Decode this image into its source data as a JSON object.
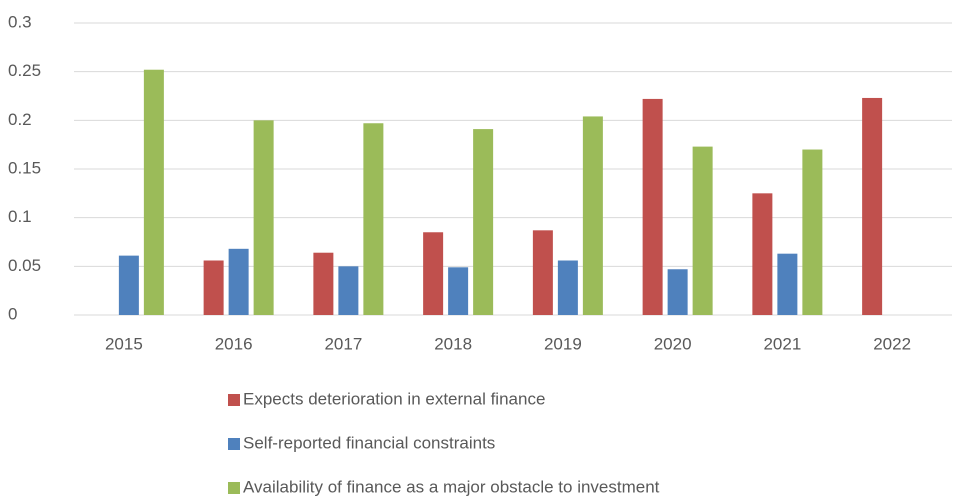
{
  "chart_data": {
    "type": "bar",
    "categories": [
      "2015",
      "2016",
      "2017",
      "2018",
      "2019",
      "2020",
      "2021",
      "2022"
    ],
    "series": [
      {
        "name": "Expects deterioration in external finance",
        "color": "#c0504d",
        "values": [
          null,
          0.056,
          0.064,
          0.085,
          0.087,
          0.222,
          0.125,
          0.223
        ]
      },
      {
        "name": "Self-reported financial constraints",
        "color": "#4f81bd",
        "values": [
          0.061,
          0.068,
          0.05,
          0.049,
          0.056,
          0.047,
          0.063,
          null
        ]
      },
      {
        "name": "Availability of finance as a major obstacle to investment",
        "color": "#9bbb59",
        "values": [
          0.252,
          0.2,
          0.197,
          0.191,
          0.204,
          0.173,
          0.17,
          null
        ]
      }
    ],
    "ylim": [
      0,
      0.3
    ],
    "yticks": [
      0,
      0.05,
      0.1,
      0.15,
      0.2,
      0.25,
      0.3
    ],
    "grid": true
  }
}
